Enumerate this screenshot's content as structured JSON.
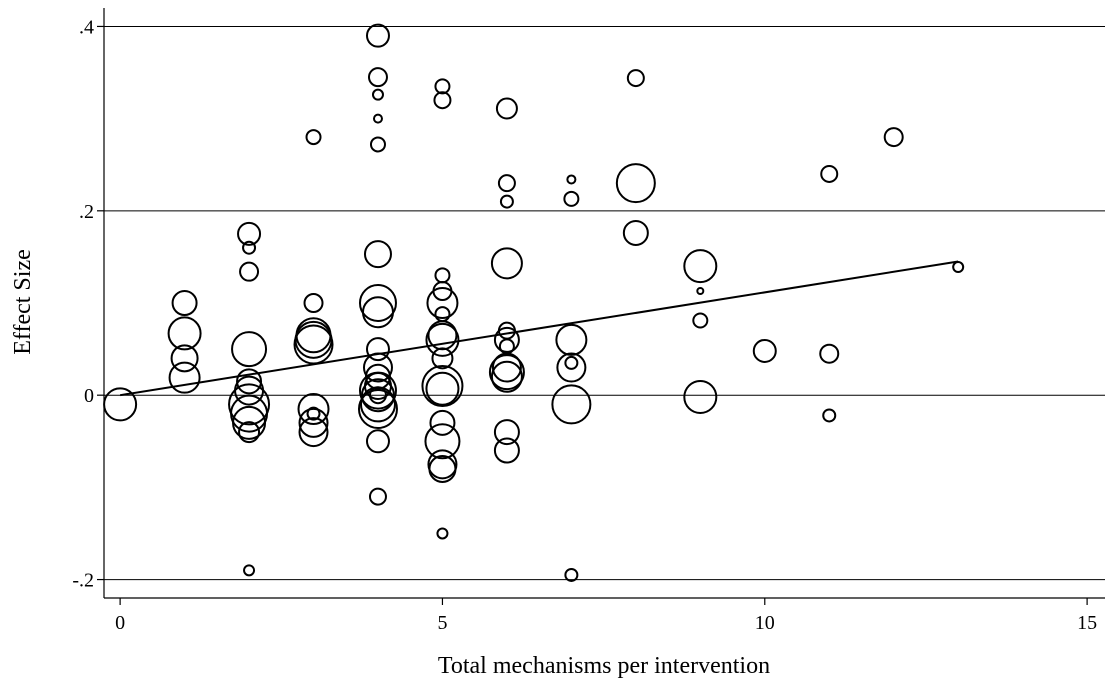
{
  "chart_data": {
    "type": "scatter",
    "title": "",
    "xlabel": "Total mechanisms per intervention",
    "ylabel": "Effect Size",
    "xlim": [
      -0.25,
      15.2
    ],
    "ylim": [
      -0.22,
      0.42
    ],
    "x_ticks": [
      0,
      5,
      10,
      15
    ],
    "x_tick_labels": [
      "0",
      "5",
      "10",
      "15"
    ],
    "y_ticks": [
      -0.2,
      0,
      0.2,
      0.4
    ],
    "y_tick_labels": [
      "-.2",
      "0",
      ".2",
      ".4"
    ],
    "grid": "horizontal",
    "fit_line": {
      "x": [
        0,
        13
      ],
      "y": [
        0,
        0.145
      ]
    },
    "points": [
      {
        "x": 0,
        "y": -0.01,
        "w": 16
      },
      {
        "x": 1,
        "y": 0.1,
        "w": 12
      },
      {
        "x": 1,
        "y": 0.067,
        "w": 16
      },
      {
        "x": 1,
        "y": 0.04,
        "w": 13
      },
      {
        "x": 1,
        "y": 0.019,
        "w": 15
      },
      {
        "x": 2,
        "y": 0.175,
        "w": 11
      },
      {
        "x": 2,
        "y": 0.16,
        "w": 6
      },
      {
        "x": 2,
        "y": 0.134,
        "w": 9
      },
      {
        "x": 2,
        "y": 0.05,
        "w": 17
      },
      {
        "x": 2,
        "y": 0.015,
        "w": 12
      },
      {
        "x": 2,
        "y": 0.005,
        "w": 14
      },
      {
        "x": 2,
        "y": -0.01,
        "w": 20
      },
      {
        "x": 2,
        "y": -0.02,
        "w": 18
      },
      {
        "x": 2,
        "y": -0.03,
        "w": 16
      },
      {
        "x": 2,
        "y": -0.04,
        "w": 10
      },
      {
        "x": 2,
        "y": -0.19,
        "w": 5
      },
      {
        "x": 3,
        "y": 0.28,
        "w": 7
      },
      {
        "x": 3,
        "y": 0.1,
        "w": 9
      },
      {
        "x": 3,
        "y": 0.065,
        "w": 17
      },
      {
        "x": 3,
        "y": 0.06,
        "w": 18
      },
      {
        "x": 3,
        "y": 0.055,
        "w": 19
      },
      {
        "x": 3,
        "y": -0.015,
        "w": 15
      },
      {
        "x": 3,
        "y": -0.02,
        "w": 6
      },
      {
        "x": 3,
        "y": -0.03,
        "w": 14
      },
      {
        "x": 3,
        "y": -0.04,
        "w": 14
      },
      {
        "x": 4,
        "y": 0.39,
        "w": 11
      },
      {
        "x": 4,
        "y": 0.345,
        "w": 9
      },
      {
        "x": 4,
        "y": 0.326,
        "w": 5
      },
      {
        "x": 4,
        "y": 0.3,
        "w": 4
      },
      {
        "x": 4,
        "y": 0.272,
        "w": 7
      },
      {
        "x": 4,
        "y": 0.153,
        "w": 13
      },
      {
        "x": 4,
        "y": 0.1,
        "w": 18
      },
      {
        "x": 4,
        "y": 0.09,
        "w": 15
      },
      {
        "x": 4,
        "y": 0.05,
        "w": 11
      },
      {
        "x": 4,
        "y": 0.03,
        "w": 14
      },
      {
        "x": 4,
        "y": 0.02,
        "w": 12
      },
      {
        "x": 4,
        "y": 0.01,
        "w": 13
      },
      {
        "x": 4,
        "y": 0.005,
        "w": 18
      },
      {
        "x": 4,
        "y": 0.0,
        "w": 16
      },
      {
        "x": 4,
        "y": 0.0,
        "w": 8
      },
      {
        "x": 4,
        "y": -0.01,
        "w": 17
      },
      {
        "x": 4,
        "y": -0.015,
        "w": 19
      },
      {
        "x": 4,
        "y": -0.05,
        "w": 11
      },
      {
        "x": 4,
        "y": -0.11,
        "w": 8
      },
      {
        "x": 5,
        "y": 0.335,
        "w": 7
      },
      {
        "x": 5,
        "y": 0.32,
        "w": 8
      },
      {
        "x": 5,
        "y": 0.13,
        "w": 7
      },
      {
        "x": 5,
        "y": 0.113,
        "w": 9
      },
      {
        "x": 5,
        "y": 0.1,
        "w": 15
      },
      {
        "x": 5,
        "y": 0.088,
        "w": 7
      },
      {
        "x": 5,
        "y": 0.065,
        "w": 14
      },
      {
        "x": 5,
        "y": 0.06,
        "w": 16
      },
      {
        "x": 5,
        "y": 0.04,
        "w": 10
      },
      {
        "x": 5,
        "y": 0.01,
        "w": 20
      },
      {
        "x": 5,
        "y": 0.007,
        "w": 16
      },
      {
        "x": 5,
        "y": -0.03,
        "w": 12
      },
      {
        "x": 5,
        "y": -0.05,
        "w": 17
      },
      {
        "x": 5,
        "y": -0.075,
        "w": 14
      },
      {
        "x": 5,
        "y": -0.08,
        "w": 13
      },
      {
        "x": 5,
        "y": -0.15,
        "w": 5
      },
      {
        "x": 6,
        "y": 0.311,
        "w": 10
      },
      {
        "x": 6,
        "y": 0.23,
        "w": 8
      },
      {
        "x": 6,
        "y": 0.21,
        "w": 6
      },
      {
        "x": 6,
        "y": 0.143,
        "w": 15
      },
      {
        "x": 6,
        "y": 0.07,
        "w": 8
      },
      {
        "x": 6,
        "y": 0.06,
        "w": 12
      },
      {
        "x": 6,
        "y": 0.053,
        "w": 7
      },
      {
        "x": 6,
        "y": 0.03,
        "w": 14
      },
      {
        "x": 6,
        "y": 0.025,
        "w": 17
      },
      {
        "x": 6,
        "y": 0.02,
        "w": 15
      },
      {
        "x": 6,
        "y": -0.04,
        "w": 12
      },
      {
        "x": 6,
        "y": -0.06,
        "w": 12
      },
      {
        "x": 7,
        "y": 0.234,
        "w": 4
      },
      {
        "x": 7,
        "y": 0.213,
        "w": 7
      },
      {
        "x": 7,
        "y": 0.06,
        "w": 15
      },
      {
        "x": 7,
        "y": 0.035,
        "w": 6
      },
      {
        "x": 7,
        "y": 0.03,
        "w": 14
      },
      {
        "x": 7,
        "y": -0.01,
        "w": 19
      },
      {
        "x": 7,
        "y": -0.195,
        "w": 6
      },
      {
        "x": 8,
        "y": 0.344,
        "w": 8
      },
      {
        "x": 8,
        "y": 0.23,
        "w": 19
      },
      {
        "x": 8,
        "y": 0.176,
        "w": 12
      },
      {
        "x": 9,
        "y": 0.14,
        "w": 16
      },
      {
        "x": 9,
        "y": 0.113,
        "w": 3
      },
      {
        "x": 9,
        "y": 0.081,
        "w": 7
      },
      {
        "x": 9,
        "y": -0.002,
        "w": 16
      },
      {
        "x": 10,
        "y": 0.048,
        "w": 11
      },
      {
        "x": 11,
        "y": 0.24,
        "w": 8
      },
      {
        "x": 11,
        "y": 0.045,
        "w": 9
      },
      {
        "x": 11,
        "y": -0.022,
        "w": 6
      },
      {
        "x": 12,
        "y": 0.28,
        "w": 9
      },
      {
        "x": 13,
        "y": 0.139,
        "w": 5
      }
    ]
  }
}
